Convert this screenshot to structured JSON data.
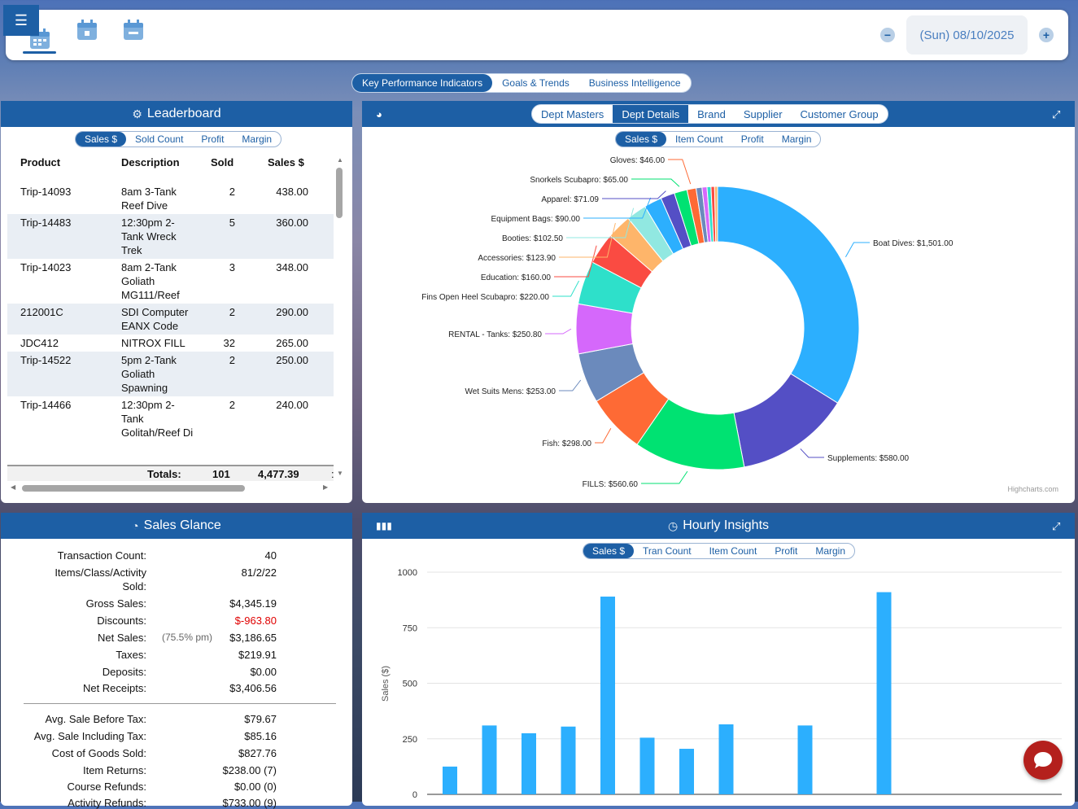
{
  "topbar": {
    "menu_icon": "hamburger-icon",
    "date": "(Sun) 08/10/2025",
    "minus": "−",
    "plus": "+"
  },
  "main_tabs": [
    {
      "label": "Key Performance Indicators",
      "active": true
    },
    {
      "label": "Goals & Trends",
      "active": false
    },
    {
      "label": "Business Intelligence",
      "active": false
    }
  ],
  "leaderboard": {
    "title": "Leaderboard",
    "tabs": [
      {
        "label": "Sales $",
        "active": true
      },
      {
        "label": "Sold Count"
      },
      {
        "label": "Profit"
      },
      {
        "label": "Margin"
      }
    ],
    "columns": [
      "Product",
      "Description",
      "Sold",
      "Sales $"
    ],
    "rows": [
      {
        "product": "Trip-14093",
        "description": "8am 3-Tank Reef Dive",
        "sold": "2",
        "sales": "438.00"
      },
      {
        "product": "Trip-14483",
        "description": "12:30pm 2-Tank Wreck Trek",
        "sold": "5",
        "sales": "360.00"
      },
      {
        "product": "Trip-14023",
        "description": "8am 2-Tank Goliath MG111/Reef",
        "sold": "3",
        "sales": "348.00"
      },
      {
        "product": "212001C",
        "description": "SDI Computer EANX Code",
        "sold": "2",
        "sales": "290.00"
      },
      {
        "product": "JDC412",
        "description": "NITROX FILL",
        "sold": "32",
        "sales": "265.00"
      },
      {
        "product": "Trip-14522",
        "description": "5pm 2-Tank Goliath Spawning",
        "sold": "2",
        "sales": "250.00"
      },
      {
        "product": "Trip-14466",
        "description": "12:30pm 2-Tank Golitah/Reef Di",
        "sold": "2",
        "sales": "240.00"
      }
    ],
    "totals_label": "Totals:",
    "totals_sold": "101",
    "totals_sales": "4,477.39",
    "totals_extra": ":"
  },
  "dept": {
    "tabs": [
      {
        "label": "Dept Masters"
      },
      {
        "label": "Dept Details",
        "active": true
      },
      {
        "label": "Brand"
      },
      {
        "label": "Supplier"
      },
      {
        "label": "Customer Group"
      }
    ],
    "subtabs": [
      {
        "label": "Sales $",
        "active": true
      },
      {
        "label": "Item Count"
      },
      {
        "label": "Profit"
      },
      {
        "label": "Margin"
      }
    ],
    "credit": "Highcharts.com"
  },
  "chart_data": [
    {
      "type": "pie",
      "donut": true,
      "slices": [
        {
          "label": "Boat Dives",
          "value": 1501.0,
          "color": "#2caffe"
        },
        {
          "label": "Supplements",
          "value": 580.0,
          "color": "#544fc5"
        },
        {
          "label": "FILLS",
          "value": 560.6,
          "color": "#00e272"
        },
        {
          "label": "Fish",
          "value": 298.0,
          "color": "#fe6a35"
        },
        {
          "label": "Wet Suits Mens",
          "value": 253.0,
          "color": "#6b8abc"
        },
        {
          "label": "RENTAL - Tanks",
          "value": 250.8,
          "color": "#d568fb"
        },
        {
          "label": "Fins Open Heel Scubapro",
          "value": 220.0,
          "color": "#2ee0ca"
        },
        {
          "label": "Education",
          "value": 160.0,
          "color": "#fa4b42"
        },
        {
          "label": "Accessories",
          "value": 123.9,
          "color": "#feb56a"
        },
        {
          "label": "Booties",
          "value": 102.5,
          "color": "#91e8e1"
        },
        {
          "label": "Equipment Bags",
          "value": 90.0,
          "color": "#2caffe"
        },
        {
          "label": "Apparel",
          "value": 71.09,
          "color": "#544fc5"
        },
        {
          "label": "Snorkels Scubapro",
          "value": 65.0,
          "color": "#00e272"
        },
        {
          "label": "Gloves",
          "value": 46.0,
          "color": "#fe6a35"
        },
        {
          "label": "",
          "value": 30,
          "color": "#6b8abc"
        },
        {
          "label": "",
          "value": 25,
          "color": "#d568fb"
        },
        {
          "label": "",
          "value": 20,
          "color": "#2ee0ca"
        },
        {
          "label": "",
          "value": 18,
          "color": "#fa4b42"
        },
        {
          "label": "",
          "value": 15,
          "color": "#feb56a"
        }
      ],
      "data_labels": [
        {
          "text": "Boat Dives: $1,501.00"
        },
        {
          "text": "Supplements: $580.00"
        },
        {
          "text": "FILLS: $560.60"
        },
        {
          "text": "Fish: $298.00"
        },
        {
          "text": "Wet Suits Mens: $253.00"
        },
        {
          "text": "RENTAL - Tanks: $250.80"
        },
        {
          "text": "Fins Open Heel Scubapro: $220.00"
        },
        {
          "text": "Education: $160.00"
        },
        {
          "text": "Accessories: $123.90"
        },
        {
          "text": "Booties: $102.50"
        },
        {
          "text": "Equipment Bags: $90.00"
        },
        {
          "text": "Apparel: $71.09"
        },
        {
          "text": "Snorkels Scubapro: $65.00"
        },
        {
          "text": "Gloves: $46.00"
        }
      ]
    },
    {
      "type": "bar",
      "ylabel": "Sales ($)",
      "ylim": [
        0,
        1000
      ],
      "yticks": [
        "0",
        "250",
        "500",
        "750",
        "1000"
      ],
      "values": [
        125,
        310,
        275,
        305,
        890,
        255,
        205,
        315,
        0,
        310,
        0,
        910
      ],
      "color": "#2caffe"
    }
  ],
  "hourly": {
    "title": "Hourly Insights",
    "tabs": [
      {
        "label": "Sales $",
        "active": true
      },
      {
        "label": "Tran Count"
      },
      {
        "label": "Item Count"
      },
      {
        "label": "Profit"
      },
      {
        "label": "Margin"
      }
    ]
  },
  "glance": {
    "title": "Sales Glance",
    "rows": [
      {
        "label": "Transaction Count:",
        "value": "40"
      },
      {
        "label": "Items/Class/Activity",
        "value": "81/2/22"
      },
      {
        "label": "Sold:",
        "value": ""
      },
      {
        "label": "Gross Sales:",
        "value": "$4,345.19"
      },
      {
        "label": "Discounts:",
        "value": "$-963.80",
        "neg": true
      },
      {
        "label": "Net Sales:",
        "note": "(75.5% pm)",
        "value": "$3,186.65"
      },
      {
        "label": "Taxes:",
        "value": "$219.91"
      },
      {
        "label": "Deposits:",
        "value": "$0.00"
      },
      {
        "label": "Net Receipts:",
        "value": "$3,406.56"
      },
      {
        "label": "Avg. Sale Before Tax:",
        "value": "$79.67"
      },
      {
        "label": "Avg. Sale Including Tax:",
        "value": "$85.16"
      },
      {
        "label": "Cost of Goods Sold:",
        "value": "$827.76"
      },
      {
        "label": "Item Returns:",
        "value": "$238.00 (7)"
      },
      {
        "label": "Course Refunds:",
        "value": "$0.00 (0)"
      },
      {
        "label": "Activity Refunds:",
        "value": "$733.00 (9)"
      }
    ]
  }
}
